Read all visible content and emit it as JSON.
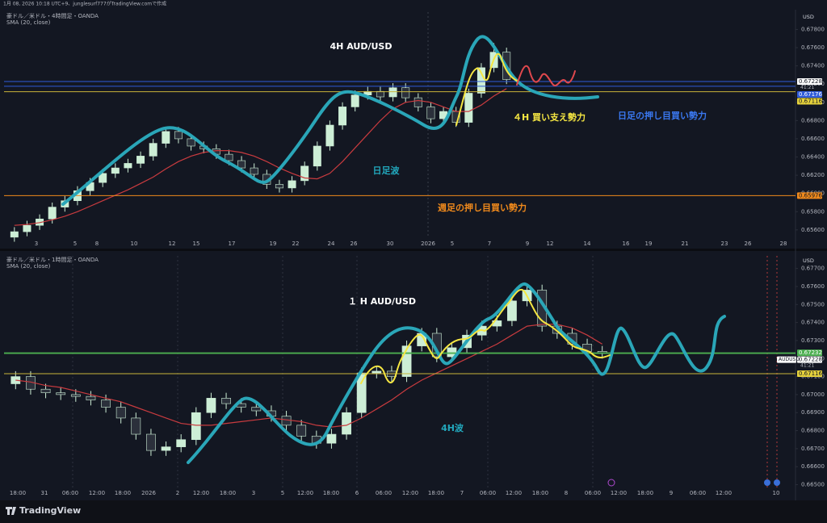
{
  "header": {
    "text": "1月 08, 2026 10:18 UTC+9、junglesurf777がTradingView.comで作成"
  },
  "brand": "TradingView",
  "chart_data": [
    {
      "type": "candlestick",
      "title": "豪ドル／米ドル・4時間足・OANDA",
      "currency": "USD",
      "up_color": "#cdeed6",
      "down_color": "#2b303b",
      "ylim": [
        0.6551,
        0.6799
      ],
      "yticks": [
        {
          "value": 0.656,
          "label": "0.65600"
        },
        {
          "value": 0.658,
          "label": "0.65800"
        },
        {
          "value": 0.66,
          "label": "0.66000"
        },
        {
          "value": 0.662,
          "label": "0.66200"
        },
        {
          "value": 0.664,
          "label": "0.66400"
        },
        {
          "value": 0.666,
          "label": "0.66600"
        },
        {
          "value": 0.668,
          "label": "0.66800"
        },
        {
          "value": 0.67,
          "label": "0.67000"
        },
        {
          "value": 0.672,
          "label": "0.67200"
        },
        {
          "value": 0.674,
          "label": "0.67400"
        },
        {
          "value": 0.676,
          "label": "0.67600"
        },
        {
          "value": 0.678,
          "label": "0.67800"
        }
      ],
      "x_labels": [
        "3",
        "5",
        "8",
        "10",
        "12",
        "15",
        "17",
        "19",
        "22",
        "24",
        "26",
        "30",
        "2026",
        "5",
        "7",
        "9",
        "12",
        "14",
        "16",
        "19",
        "21",
        "23",
        "26",
        "28"
      ],
      "ohlc": [
        [
          0.6552,
          0.6563,
          0.6547,
          0.6558
        ],
        [
          0.6558,
          0.657,
          0.6553,
          0.6565
        ],
        [
          0.6565,
          0.6577,
          0.656,
          0.6572
        ],
        [
          0.6572,
          0.659,
          0.6567,
          0.6585
        ],
        [
          0.6585,
          0.6597,
          0.658,
          0.6592
        ],
        [
          0.6592,
          0.6608,
          0.6587,
          0.6603
        ],
        [
          0.6603,
          0.6617,
          0.6598,
          0.6612
        ],
        [
          0.6612,
          0.6627,
          0.6607,
          0.6622
        ],
        [
          0.6622,
          0.6633,
          0.6617,
          0.6628
        ],
        [
          0.6628,
          0.6638,
          0.6623,
          0.6633
        ],
        [
          0.6633,
          0.6646,
          0.6628,
          0.6641
        ],
        [
          0.6641,
          0.666,
          0.6636,
          0.6655
        ],
        [
          0.6655,
          0.6673,
          0.665,
          0.6668
        ],
        [
          0.6668,
          0.6673,
          0.6655,
          0.666
        ],
        [
          0.666,
          0.6665,
          0.6647,
          0.6652
        ],
        [
          0.6652,
          0.6657,
          0.6644,
          0.6649
        ],
        [
          0.6649,
          0.6654,
          0.6638,
          0.6643
        ],
        [
          0.6643,
          0.6648,
          0.6631,
          0.6636
        ],
        [
          0.6636,
          0.6641,
          0.6623,
          0.6628
        ],
        [
          0.6628,
          0.6633,
          0.6616,
          0.6621
        ],
        [
          0.6621,
          0.6626,
          0.6605,
          0.661
        ],
        [
          0.661,
          0.6615,
          0.6601,
          0.6606
        ],
        [
          0.6606,
          0.6619,
          0.6601,
          0.6614
        ],
        [
          0.6614,
          0.6635,
          0.6609,
          0.663
        ],
        [
          0.663,
          0.6657,
          0.6625,
          0.6652
        ],
        [
          0.6652,
          0.668,
          0.6647,
          0.6675
        ],
        [
          0.6675,
          0.67,
          0.667,
          0.6695
        ],
        [
          0.6695,
          0.6713,
          0.669,
          0.6708
        ],
        [
          0.6708,
          0.6717,
          0.6703,
          0.6712
        ],
        [
          0.6712,
          0.6717,
          0.6701,
          0.6706
        ],
        [
          0.6706,
          0.6721,
          0.6701,
          0.6716
        ],
        [
          0.6716,
          0.6721,
          0.67,
          0.6705
        ],
        [
          0.6705,
          0.671,
          0.669,
          0.6695
        ],
        [
          0.6695,
          0.67,
          0.6677,
          0.6682
        ],
        [
          0.6682,
          0.6695,
          0.6677,
          0.669
        ],
        [
          0.669,
          0.6695,
          0.6673,
          0.6678
        ],
        [
          0.6678,
          0.6715,
          0.6673,
          0.671
        ],
        [
          0.671,
          0.6743,
          0.6705,
          0.6738
        ],
        [
          0.6738,
          0.6765,
          0.6733,
          0.6755
        ],
        [
          0.6755,
          0.676,
          0.672,
          0.6725
        ]
      ],
      "series": [
        {
          "name": "SMA (20, close)",
          "color": "#c93b3f",
          "values": [
            0.6565,
            0.6566,
            0.6568,
            0.6571,
            0.6575,
            0.658,
            0.6586,
            0.6592,
            0.6598,
            0.6604,
            0.6611,
            0.6618,
            0.6627,
            0.6635,
            0.6641,
            0.6645,
            0.6647,
            0.6647,
            0.6645,
            0.6641,
            0.6635,
            0.6628,
            0.6622,
            0.6617,
            0.6616,
            0.6622,
            0.6635,
            0.665,
            0.6665,
            0.668,
            0.6693,
            0.67,
            0.6702,
            0.67,
            0.6695,
            0.669,
            0.669,
            0.6697,
            0.6707,
            0.6715
          ]
        }
      ],
      "hlines": [
        {
          "value": 0.67228,
          "label": "0.67228",
          "color": "#2f5bd8",
          "label_bg": "#ffffff",
          "label_color": "#131722"
        },
        {
          "value": 0.67176,
          "label": "0.67176",
          "color": "#2f5bd8",
          "label_bg": "#2f5bd8",
          "label_color": "#ffffff"
        },
        {
          "value": 0.67116,
          "label": "0.67116",
          "color": "#c9b53a",
          "label_bg": "#e6d23c",
          "label_color": "#131722"
        },
        {
          "value": 0.65976,
          "label": "0.65976",
          "color": "#f08a1c",
          "label_bg": "#f08a1c",
          "label_color": "#131722"
        }
      ],
      "countdown": "41:21",
      "annotations": [
        {
          "text": "4H AUD/USD",
          "color": "#ffffff"
        },
        {
          "text": "４H 買い支え勢力",
          "color": "#f5e642"
        },
        {
          "text": "日足の押し目買い勢力",
          "color": "#3a78f0"
        },
        {
          "text": "日足波",
          "color": "#22a8bd"
        },
        {
          "text": "週足の押し目買い勢力",
          "color": "#f08a1c"
        }
      ]
    },
    {
      "type": "candlestick",
      "title": "豪ドル／米ドル・1時間足・OANDA",
      "currency": "USD",
      "up_color": "#cdeed6",
      "down_color": "#2b303b",
      "ylim": [
        0.6648,
        0.6777
      ],
      "yticks": [
        {
          "value": 0.665,
          "label": "0.66500"
        },
        {
          "value": 0.666,
          "label": "0.66600"
        },
        {
          "value": 0.667,
          "label": "0.66700"
        },
        {
          "value": 0.668,
          "label": "0.66800"
        },
        {
          "value": 0.669,
          "label": "0.66900"
        },
        {
          "value": 0.67,
          "label": "0.67000"
        },
        {
          "value": 0.671,
          "label": "0.67100"
        },
        {
          "value": 0.672,
          "label": "0.67200"
        },
        {
          "value": 0.673,
          "label": "0.67300"
        },
        {
          "value": 0.674,
          "label": "0.67400"
        },
        {
          "value": 0.675,
          "label": "0.67500"
        },
        {
          "value": 0.676,
          "label": "0.67600"
        },
        {
          "value": 0.677,
          "label": "0.67700"
        }
      ],
      "x_labels": [
        "18:00",
        "31",
        "06:00",
        "12:00",
        "18:00",
        "2026",
        "2",
        "12:00",
        "18:00",
        "3",
        "5",
        "12:00",
        "18:00",
        "6",
        "06:00",
        "12:00",
        "18:00",
        "7",
        "06:00",
        "12:00",
        "18:00",
        "8",
        "06:00",
        "12:00",
        "18:00",
        "9",
        "06:00",
        "12:00",
        "10"
      ],
      "ohlc": [
        [
          0.6706,
          0.6713,
          0.6703,
          0.671
        ],
        [
          0.671,
          0.6713,
          0.67,
          0.6703
        ],
        [
          0.6703,
          0.6706,
          0.6698,
          0.6701
        ],
        [
          0.6701,
          0.6704,
          0.6697,
          0.67
        ],
        [
          0.67,
          0.6703,
          0.6696,
          0.6699
        ],
        [
          0.6699,
          0.6702,
          0.6694,
          0.6697
        ],
        [
          0.6697,
          0.67,
          0.669,
          0.6693
        ],
        [
          0.6693,
          0.6696,
          0.6684,
          0.6687
        ],
        [
          0.6687,
          0.669,
          0.6675,
          0.6678
        ],
        [
          0.6678,
          0.6681,
          0.6666,
          0.6669
        ],
        [
          0.6669,
          0.6674,
          0.6666,
          0.6671
        ],
        [
          0.6671,
          0.6678,
          0.6668,
          0.6675
        ],
        [
          0.6675,
          0.6693,
          0.6672,
          0.669
        ],
        [
          0.669,
          0.6701,
          0.6687,
          0.6698
        ],
        [
          0.6698,
          0.6701,
          0.6692,
          0.6695
        ],
        [
          0.6695,
          0.6698,
          0.669,
          0.6693
        ],
        [
          0.6693,
          0.6696,
          0.6688,
          0.6691
        ],
        [
          0.6691,
          0.6694,
          0.6685,
          0.6688
        ],
        [
          0.6688,
          0.6691,
          0.668,
          0.6683
        ],
        [
          0.6683,
          0.6686,
          0.6674,
          0.6677
        ],
        [
          0.6677,
          0.668,
          0.667,
          0.6673
        ],
        [
          0.6673,
          0.6681,
          0.667,
          0.6678
        ],
        [
          0.6678,
          0.6693,
          0.6675,
          0.669
        ],
        [
          0.669,
          0.6715,
          0.6687,
          0.6712
        ],
        [
          0.6712,
          0.6716,
          0.6709,
          0.6713
        ],
        [
          0.6713,
          0.6716,
          0.6707,
          0.671
        ],
        [
          0.671,
          0.673,
          0.6707,
          0.6727
        ],
        [
          0.6727,
          0.6737,
          0.6724,
          0.6734
        ],
        [
          0.6734,
          0.6737,
          0.6718,
          0.6721
        ],
        [
          0.6721,
          0.6729,
          0.6718,
          0.6726
        ],
        [
          0.6726,
          0.6736,
          0.6723,
          0.6733
        ],
        [
          0.6733,
          0.6741,
          0.673,
          0.6738
        ],
        [
          0.6738,
          0.6744,
          0.6735,
          0.6741
        ],
        [
          0.6741,
          0.6755,
          0.6738,
          0.6752
        ],
        [
          0.6752,
          0.6761,
          0.6749,
          0.6758
        ],
        [
          0.6758,
          0.6761,
          0.6735,
          0.6738
        ],
        [
          0.6738,
          0.6741,
          0.6731,
          0.6734
        ],
        [
          0.6734,
          0.6737,
          0.6725,
          0.6728
        ],
        [
          0.6728,
          0.6731,
          0.6721,
          0.6724
        ],
        [
          0.6724,
          0.6727,
          0.672,
          0.6723
        ]
      ],
      "series": [
        {
          "name": "SMA (20, close)",
          "color": "#c93b3f",
          "values": [
            0.6708,
            0.6707,
            0.6705,
            0.6704,
            0.6702,
            0.67,
            0.6698,
            0.6696,
            0.6693,
            0.669,
            0.6687,
            0.6684,
            0.6683,
            0.6683,
            0.6684,
            0.6685,
            0.6686,
            0.6687,
            0.6686,
            0.6685,
            0.6683,
            0.6682,
            0.6683,
            0.6687,
            0.6692,
            0.6697,
            0.6703,
            0.6708,
            0.6712,
            0.6716,
            0.672,
            0.6724,
            0.6728,
            0.6733,
            0.6738,
            0.6739,
            0.6739,
            0.6737,
            0.6733,
            0.6728
          ]
        }
      ],
      "hlines": [
        {
          "value": 0.67232,
          "label": "0.67232",
          "color": "#4caf50",
          "label_bg": "#4caf50",
          "label_color": "#ffffff"
        },
        {
          "value": 0.67228,
          "label": "0.67228",
          "tag": "AUDUSD",
          "color": "#4caf50",
          "label_bg": "#ffffff",
          "label_color": "#131722"
        },
        {
          "value": 0.67116,
          "label": "0.67116",
          "color": "#c9b53a",
          "label_bg": "#e6d23c",
          "label_color": "#131722"
        }
      ],
      "countdown": "41:21",
      "annotations": [
        {
          "text": "１ H AUD/USD",
          "color": "#ffffff"
        },
        {
          "text": "4H波",
          "color": "#22a8bd"
        }
      ]
    }
  ]
}
